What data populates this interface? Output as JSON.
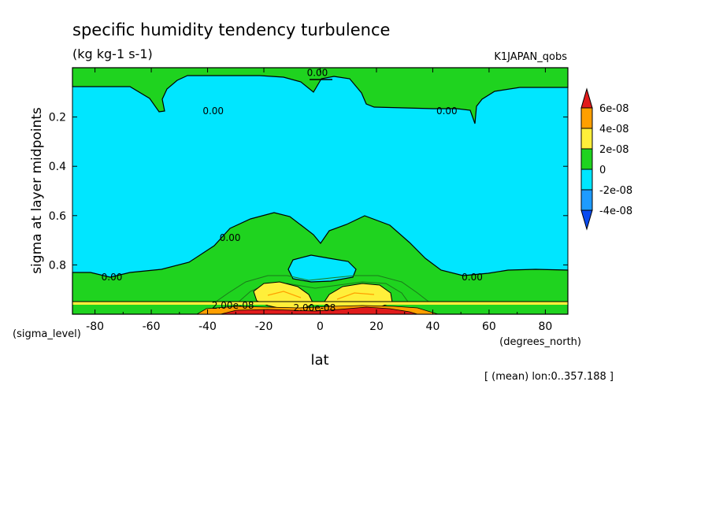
{
  "chart_data": {
    "type": "contour",
    "title": "specific humidity tendency turbulence",
    "subtitle": "(kg kg-1 s-1)",
    "dataset_label": "K1JAPAN_qobs",
    "xlabel": "lat",
    "xunit": "(degrees_north)",
    "ylabel": "sigma at layer midpoints",
    "yunit": "(sigma_level)",
    "footnote": "[ (mean) lon:0..357.188 ]",
    "xlim": [
      -88,
      88
    ],
    "ylim": [
      1.0,
      0.0
    ],
    "x_ticks": [
      -80,
      -60,
      -40,
      -20,
      0,
      20,
      40,
      60,
      80
    ],
    "x_tick_labels": [
      "-80",
      "-60",
      "-40",
      "-20",
      "0",
      "20",
      "40",
      "60",
      "80"
    ],
    "y_ticks": [
      0.2,
      0.4,
      0.6,
      0.8
    ],
    "y_tick_labels": [
      "0.2",
      "0.4",
      "0.6",
      "0.8"
    ],
    "colorbar": {
      "labels": [
        "6e-08",
        "4e-08",
        "2e-08",
        "0",
        "-2e-08",
        "-4e-08"
      ],
      "levels": [
        6e-08,
        4e-08,
        2e-08,
        0,
        -2e-08,
        -4e-08
      ],
      "colors": [
        "#e11b1b",
        "#ff9f00",
        "#ffef3a",
        "#1fd31f",
        "#00e6ff",
        "#1e9bff",
        "#0a4bf0"
      ]
    },
    "contour_labels": [
      {
        "text": "0.00",
        "lat": -1,
        "sigma": 0.02
      },
      {
        "text": "0.00",
        "lat": -38,
        "sigma": 0.175
      },
      {
        "text": "0.00",
        "lat": 45,
        "sigma": 0.175
      },
      {
        "text": "0.00",
        "lat": -32,
        "sigma": 0.69
      },
      {
        "text": "0.00",
        "lat": -74,
        "sigma": 0.85
      },
      {
        "text": "0.00",
        "lat": 54,
        "sigma": 0.85
      },
      {
        "text": "2.00e-08",
        "lat": -31,
        "sigma": 0.965
      },
      {
        "text": "2.00e-08",
        "lat": -2,
        "sigma": 0.975
      }
    ],
    "regions": [
      {
        "name": "negative (0 to -2e-08)",
        "color": "#00e6ff"
      },
      {
        "name": "positive (0 to 2e-08)",
        "color": "#1fd31f"
      },
      {
        "name": "positive (2e-08 to 4e-08)",
        "color": "#ffef3a"
      },
      {
        "name": "positive (4e-08 to 6e-08)",
        "color": "#ff9f00"
      },
      {
        "name": "positive (above 6e-08)",
        "color": "#e11b1b"
      }
    ]
  }
}
